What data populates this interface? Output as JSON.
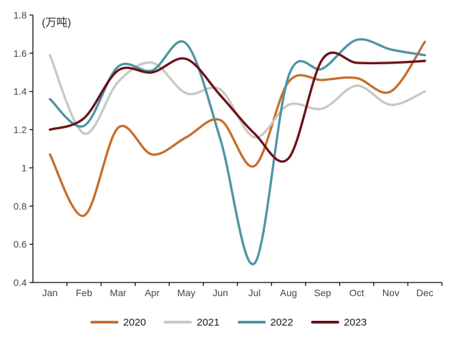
{
  "chart_data": {
    "type": "line",
    "title": "",
    "unit_label": "(万吨)",
    "xlabel": "",
    "ylabel": "万吨",
    "categories": [
      "Jan",
      "Feb",
      "Mar",
      "Apr",
      "May",
      "Jun",
      "Jul",
      "Aug",
      "Sep",
      "Oct",
      "Nov",
      "Dec"
    ],
    "y_tick_labels": [
      "0.4",
      "0.6",
      "0.8",
      "1",
      "1.2",
      "1.4",
      "1.6",
      "1.8"
    ],
    "ylim": [
      0.4,
      1.8
    ],
    "y_step": 0.2,
    "grid": false,
    "line_style": "smooth",
    "legend_position": "bottom",
    "axis_color": "#000000",
    "tick_label_color": "#454545",
    "series": [
      {
        "name": "2020",
        "color": "#C86E2D",
        "values": [
          1.07,
          0.75,
          1.21,
          1.07,
          1.16,
          1.25,
          1.01,
          1.45,
          1.46,
          1.47,
          1.4,
          1.66
        ]
      },
      {
        "name": "2021",
        "color": "#C8C9C2",
        "values": [
          1.59,
          1.18,
          1.45,
          1.55,
          1.39,
          1.41,
          1.16,
          1.33,
          1.31,
          1.43,
          1.33,
          1.4
        ]
      },
      {
        "name": "2022",
        "color": "#4E95A5",
        "values": [
          1.36,
          1.22,
          1.53,
          1.51,
          1.65,
          1.15,
          0.5,
          1.48,
          1.52,
          1.67,
          1.62,
          1.59
        ]
      },
      {
        "name": "2023",
        "color": "#6B1218",
        "values": [
          1.2,
          1.26,
          1.51,
          1.5,
          1.57,
          1.38,
          1.18,
          1.05,
          1.57,
          1.55,
          1.55,
          1.56
        ]
      }
    ]
  }
}
